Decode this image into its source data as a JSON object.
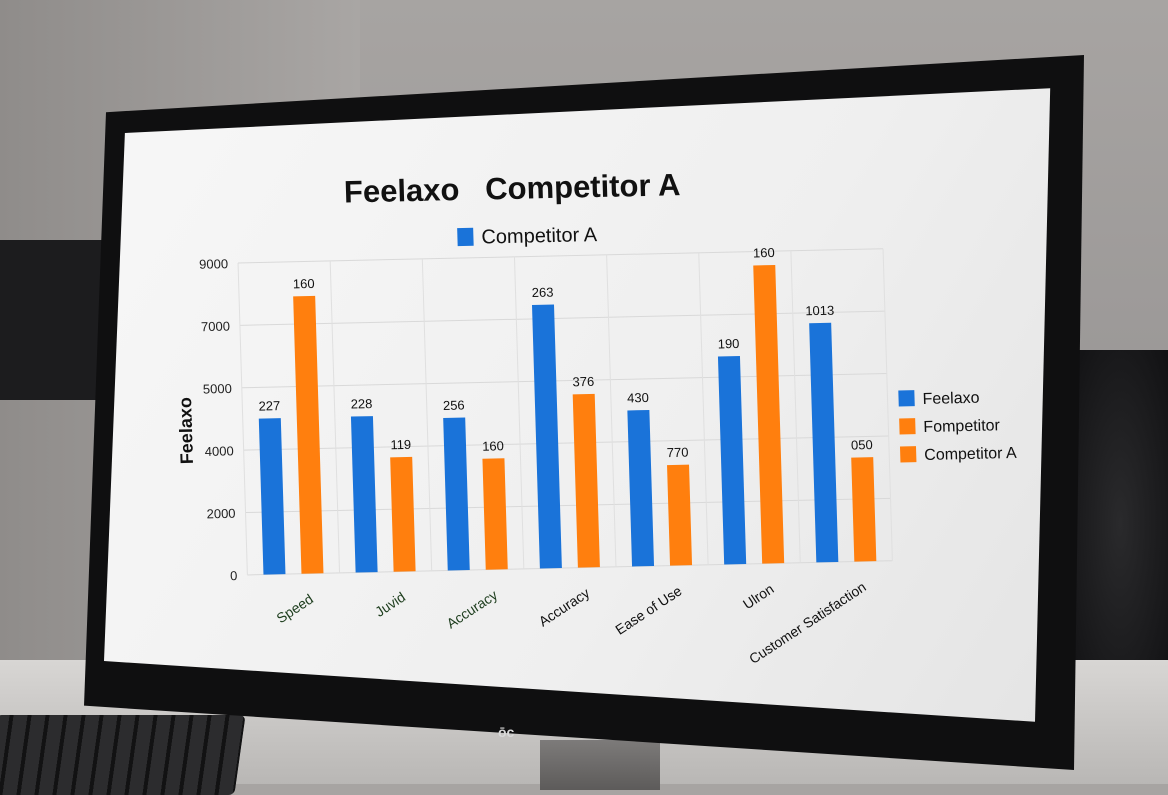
{
  "chart_data": {
    "type": "bar",
    "title": "Feelaxo   Competitor A",
    "legend_top": "Competitor A",
    "ylabel": "Feelaxo",
    "xlabel": "",
    "y_ticks": [
      "0",
      "2000",
      "4000",
      "5000",
      "7000",
      "9000"
    ],
    "ylim": [
      0,
      9000
    ],
    "categories": [
      "Speed",
      "Juvid",
      "Accuracy",
      "Accuracy",
      "Ease of Use",
      "Ulron",
      "Customer Satisfaction"
    ],
    "series": [
      {
        "name": "Feelaxo",
        "color": "#1a73d9",
        "values": [
          4500,
          4500,
          4400,
          7600,
          4500,
          6000,
          6900
        ],
        "labels": [
          "227",
          "228",
          "256",
          "263",
          "430",
          "190",
          "1013"
        ]
      },
      {
        "name": "Competitor A",
        "color": "#ff7f0e",
        "values": [
          8000,
          3300,
          3200,
          5000,
          2900,
          8600,
          3000
        ],
        "labels": [
          "160",
          "119",
          "160",
          "376",
          "770",
          "160",
          "050"
        ]
      }
    ],
    "legend_right": [
      {
        "label": "Feelaxo",
        "color": "#1a73d9"
      },
      {
        "label": "Fompetitor",
        "color": "#ff7f0e"
      },
      {
        "label": "Competitor A",
        "color": "#ff7f0e"
      }
    ],
    "grid": true,
    "legend_position": "right"
  },
  "monitor": {
    "brand": "ōc"
  }
}
